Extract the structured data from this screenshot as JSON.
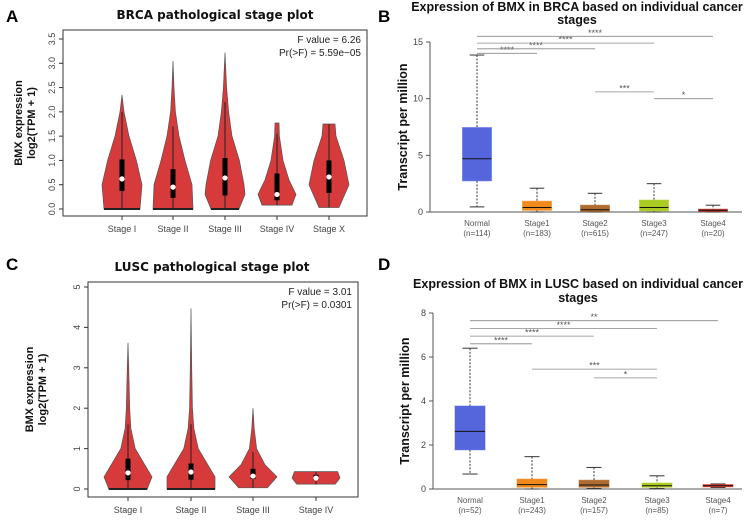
{
  "chart_data": [
    {
      "panel": "A",
      "type": "violin",
      "title": "BRCA pathological stage plot",
      "ylabel": [
        "BMX expression",
        "log2(TPM + 1)"
      ],
      "ylim": [
        0,
        3.5
      ],
      "yticks": [
        "0.0",
        "0.5",
        "1.0",
        "1.5",
        "2.0",
        "2.5",
        "3.0",
        "3.5"
      ],
      "annotation": [
        "F value = 6.26",
        "Pr(>F) = 5.59e−05"
      ],
      "fill_color": "#d63a3a",
      "categories": [
        "Stage I",
        "Stage II",
        "Stage III",
        "Stage IV",
        "Stage X"
      ],
      "violins": [
        {
          "min": 0,
          "max": 2.35,
          "q1": 0.37,
          "median": 0.62,
          "q3": 1.02,
          "whisker": 2.0,
          "density": [
            [
              0,
              0.9
            ],
            [
              0.25,
              0.95
            ],
            [
              0.5,
              1.0
            ],
            [
              1.0,
              0.72
            ],
            [
              1.5,
              0.35
            ],
            [
              2.0,
              0.1
            ],
            [
              2.35,
              0
            ]
          ]
        },
        {
          "min": 0,
          "max": 3.05,
          "q1": 0.23,
          "median": 0.45,
          "q3": 0.82,
          "whisker": 1.7,
          "density": [
            [
              0,
              1.0
            ],
            [
              0.5,
              0.95
            ],
            [
              1.0,
              0.6
            ],
            [
              1.5,
              0.3
            ],
            [
              2.0,
              0.12
            ],
            [
              2.5,
              0.05
            ],
            [
              3.05,
              0
            ]
          ]
        },
        {
          "min": 0,
          "max": 3.22,
          "q1": 0.28,
          "median": 0.64,
          "q3": 1.05,
          "whisker": 2.2,
          "density": [
            [
              0,
              0.7
            ],
            [
              0.3,
              1.0
            ],
            [
              0.5,
              0.95
            ],
            [
              1.0,
              0.72
            ],
            [
              1.5,
              0.35
            ],
            [
              2.0,
              0.18
            ],
            [
              2.5,
              0.08
            ],
            [
              3.22,
              0
            ]
          ]
        },
        {
          "min": 0.08,
          "max": 1.77,
          "q1": 0.18,
          "median": 0.3,
          "q3": 0.73,
          "whisker": 1.55,
          "density": [
            [
              0.08,
              0.75
            ],
            [
              0.3,
              0.95
            ],
            [
              0.6,
              0.6
            ],
            [
              1.0,
              0.3
            ],
            [
              1.5,
              0.12
            ],
            [
              1.77,
              0.1
            ]
          ]
        },
        {
          "min": 0.03,
          "max": 1.75,
          "q1": 0.33,
          "median": 0.66,
          "q3": 1.0,
          "whisker": 1.75,
          "density": [
            [
              0.03,
              0.5
            ],
            [
              0.5,
              1.0
            ],
            [
              1.0,
              0.75
            ],
            [
              1.5,
              0.35
            ],
            [
              1.75,
              0.3
            ]
          ]
        }
      ]
    },
    {
      "panel": "B",
      "type": "box",
      "title": [
        "Expression of BMX in BRCA based on individual cancer",
        "stages"
      ],
      "ylabel": "Transcript per million",
      "ylim": [
        0,
        15
      ],
      "yticks": [
        "0",
        "5",
        "10",
        "15"
      ],
      "categories": [
        "Normal",
        "Stage1",
        "Stage2",
        "Stage3",
        "Stage4"
      ],
      "counts": [
        "(n=114)",
        "(n=183)",
        "(n=615)",
        "(n=247)",
        "(n=20)"
      ],
      "colors": [
        "#5566dd",
        "#f08a1c",
        "#b06b2e",
        "#aacc22",
        "#c0302a"
      ],
      "boxes": [
        {
          "min": 0.45,
          "q1": 2.75,
          "median": 4.7,
          "q3": 7.45,
          "max": 13.85
        },
        {
          "min": 0,
          "q1": 0.15,
          "median": 0.4,
          "q3": 0.95,
          "max": 2.1
        },
        {
          "min": 0,
          "q1": 0.05,
          "median": 0.2,
          "q3": 0.6,
          "max": 1.65
        },
        {
          "min": 0,
          "q1": 0.1,
          "median": 0.4,
          "q3": 1.05,
          "max": 2.5
        },
        {
          "min": 0,
          "q1": 0.05,
          "median": 0.15,
          "q3": 0.25,
          "max": 0.6
        }
      ],
      "significance": [
        {
          "from": 0,
          "to": 1,
          "y": 14.0,
          "label": "****"
        },
        {
          "from": 0,
          "to": 2,
          "y": 14.4,
          "label": "****"
        },
        {
          "from": 0,
          "to": 3,
          "y": 14.9,
          "label": "****"
        },
        {
          "from": 0,
          "to": 4,
          "y": 15.5,
          "label": "****"
        },
        {
          "from": 2,
          "to": 3,
          "y": 10.6,
          "label": "***"
        },
        {
          "from": 3,
          "to": 4,
          "y": 10.0,
          "label": "*"
        }
      ]
    },
    {
      "panel": "C",
      "type": "violin",
      "title": "LUSC pathological stage plot",
      "ylabel": [
        "BMX expression",
        "log2(TPM + 1)"
      ],
      "ylim": [
        0,
        5
      ],
      "yticks": [
        "0",
        "1",
        "2",
        "3",
        "4",
        "5"
      ],
      "annotation": [
        "F value = 3.01",
        "Pr(>F) = 0.0301"
      ],
      "fill_color": "#d63a3a",
      "categories": [
        "Stage I",
        "Stage II",
        "Stage III",
        "Stage IV"
      ],
      "violins": [
        {
          "min": 0,
          "max": 3.62,
          "q1": 0.22,
          "median": 0.4,
          "q3": 0.75,
          "whisker": 1.6,
          "density": [
            [
              0,
              0.8
            ],
            [
              0.3,
              1.0
            ],
            [
              0.6,
              0.7
            ],
            [
              1.0,
              0.3
            ],
            [
              1.5,
              0.12
            ],
            [
              2.0,
              0.07
            ],
            [
              3.0,
              0.03
            ],
            [
              3.62,
              0
            ]
          ]
        },
        {
          "min": 0,
          "max": 4.47,
          "q1": 0.23,
          "median": 0.42,
          "q3": 0.63,
          "whisker": 1.6,
          "density": [
            [
              0,
              1.0
            ],
            [
              0.3,
              1.0
            ],
            [
              0.7,
              0.6
            ],
            [
              1.0,
              0.3
            ],
            [
              1.5,
              0.12
            ],
            [
              2.0,
              0.06
            ],
            [
              3.0,
              0.03
            ],
            [
              4.47,
              0
            ]
          ]
        },
        {
          "min": 0.03,
          "max": 2.0,
          "q1": 0.25,
          "median": 0.32,
          "q3": 0.5,
          "whisker": 0.92,
          "density": [
            [
              0.03,
              0.6
            ],
            [
              0.3,
              1.0
            ],
            [
              0.6,
              0.5
            ],
            [
              1.0,
              0.15
            ],
            [
              1.5,
              0.05
            ],
            [
              2.0,
              0
            ]
          ]
        },
        {
          "min": 0.12,
          "max": 0.43,
          "q1": 0.22,
          "median": 0.27,
          "q3": 0.35,
          "whisker": 0.43,
          "density": [
            [
              0.12,
              0.8
            ],
            [
              0.27,
              1.0
            ],
            [
              0.43,
              0.9
            ]
          ]
        }
      ]
    },
    {
      "panel": "D",
      "type": "box",
      "title": [
        "Expression of BMX in LUSC based on individual cancer",
        "stages"
      ],
      "ylabel": "Transcript per million",
      "ylim": [
        0,
        8
      ],
      "yticks": [
        "0",
        "2",
        "4",
        "6",
        "8"
      ],
      "categories": [
        "Normal",
        "Stage1",
        "Stage2",
        "Stage3",
        "Stage4"
      ],
      "counts": [
        "(n=52)",
        "(n=243)",
        "(n=157)",
        "(n=85)",
        "(n=7)"
      ],
      "colors": [
        "#5566dd",
        "#f08a1c",
        "#b06b2e",
        "#aacc22",
        "#e03020"
      ],
      "boxes": [
        {
          "min": 0.68,
          "q1": 1.78,
          "median": 2.62,
          "q3": 3.77,
          "max": 6.4
        },
        {
          "min": 0,
          "q1": 0.08,
          "median": 0.2,
          "q3": 0.45,
          "max": 1.47
        },
        {
          "min": 0.02,
          "q1": 0.08,
          "median": 0.18,
          "q3": 0.4,
          "max": 0.98
        },
        {
          "min": 0.02,
          "q1": 0.08,
          "median": 0.15,
          "q3": 0.27,
          "max": 0.6
        },
        {
          "min": 0.07,
          "q1": 0.1,
          "median": 0.15,
          "q3": 0.2,
          "max": 0.23
        }
      ],
      "significance": [
        {
          "from": 0,
          "to": 1,
          "y": 6.6,
          "label": "****"
        },
        {
          "from": 0,
          "to": 2,
          "y": 6.95,
          "label": "****"
        },
        {
          "from": 0,
          "to": 3,
          "y": 7.3,
          "label": "****"
        },
        {
          "from": 0,
          "to": 4,
          "y": 7.65,
          "label": "**"
        },
        {
          "from": 1,
          "to": 3,
          "y": 5.45,
          "label": "***"
        },
        {
          "from": 2,
          "to": 3,
          "y": 5.05,
          "label": "*"
        }
      ]
    }
  ]
}
